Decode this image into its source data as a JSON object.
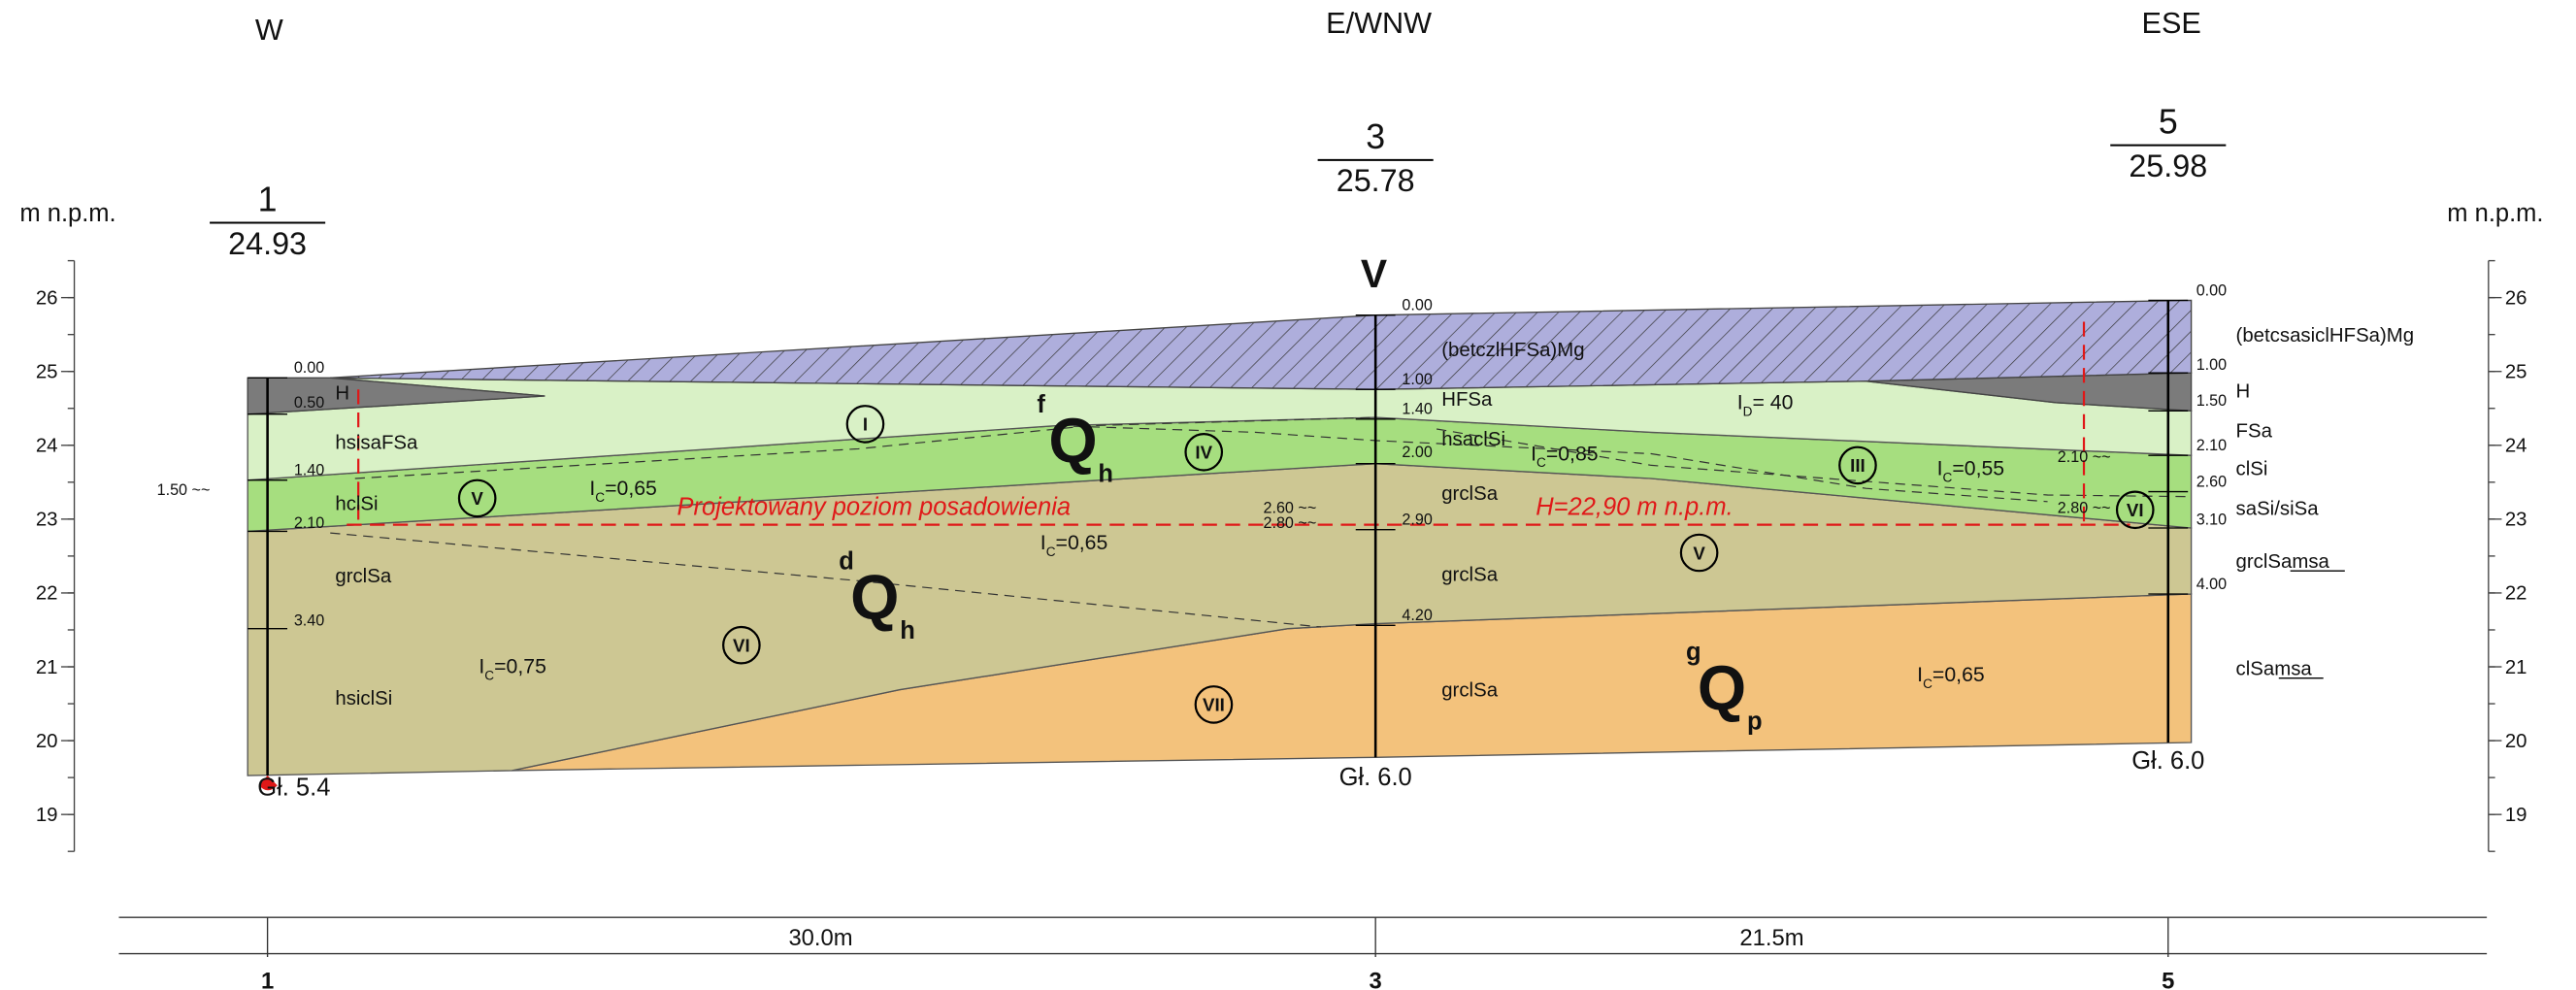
{
  "directions": [
    "W",
    "E/WNW",
    "ESE"
  ],
  "axis": {
    "label": "m n.p.m.",
    "ylim": [
      18.5,
      26.5
    ],
    "ticks": [
      19,
      20,
      21,
      22,
      23,
      24,
      25,
      26
    ]
  },
  "boreholes": [
    {
      "number": "1",
      "elevation": "24.93",
      "depth_label": "Gł. 5.4",
      "depths": [
        "0.00",
        "0.50",
        "1.40",
        "2.10",
        "3.40"
      ],
      "soils": [
        "H",
        "hsisaFSa",
        "hclSi",
        "grclSa",
        "hsiclSi"
      ],
      "water": [
        "1.50 ~~"
      ]
    },
    {
      "number": "3",
      "elevation": "25.78",
      "depth_label": "Gł. 6.0",
      "depths": [
        "0.00",
        "1.00",
        "1.40",
        "2.00",
        "2.90",
        "4.20"
      ],
      "soils": [
        "(betczlHFSa)Mg",
        "HFSa",
        "hsaclSi",
        "grclSa",
        "grclSa",
        "grclSa"
      ],
      "water": [
        "2.60 ~~",
        "2.80 ~~"
      ]
    },
    {
      "number": "5",
      "elevation": "25.98",
      "depth_label": "Gł. 6.0",
      "depths": [
        "0.00",
        "1.00",
        "1.50",
        "2.10",
        "2.60",
        "3.10",
        "4.00"
      ],
      "soils": [
        "(betcsasiclHFSa)Mg",
        "H",
        "FSa",
        "clSi",
        "saSi/siSa",
        "grclSamsa",
        "clSamsa"
      ],
      "water": [
        "2.10 ~~",
        "2.80 ~~"
      ]
    }
  ],
  "layer_numbers": [
    "I",
    "IV",
    "III",
    "V",
    "VI",
    "V",
    "VI",
    "VII"
  ],
  "indices": [
    {
      "symbol": "I",
      "sub": "C",
      "text": "=0,65"
    },
    {
      "symbol": "I",
      "sub": "C",
      "text": "=0,65"
    },
    {
      "symbol": "I",
      "sub": "C",
      "text": "=0,85"
    },
    {
      "symbol": "I",
      "sub": "C",
      "text": "=0,55"
    },
    {
      "symbol": "I",
      "sub": "C",
      "text": "=0,75"
    },
    {
      "symbol": "I",
      "sub": "C",
      "text": "=0,65"
    },
    {
      "symbol": "I",
      "sub": "D",
      "text": "= 40"
    }
  ],
  "stratigraphy": [
    {
      "symbol": "Q",
      "sup": "f",
      "sub": "h"
    },
    {
      "symbol": "Q",
      "sup": "d",
      "sub": "h"
    },
    {
      "symbol": "Q",
      "sup": "g",
      "sub": "p"
    }
  ],
  "foundation_label": "Projektowany poziom posadowienia",
  "foundation_level": "H=22,90 m n.p.m.",
  "marker": "V",
  "distances": [
    "30.0m",
    "21.5m"
  ]
}
